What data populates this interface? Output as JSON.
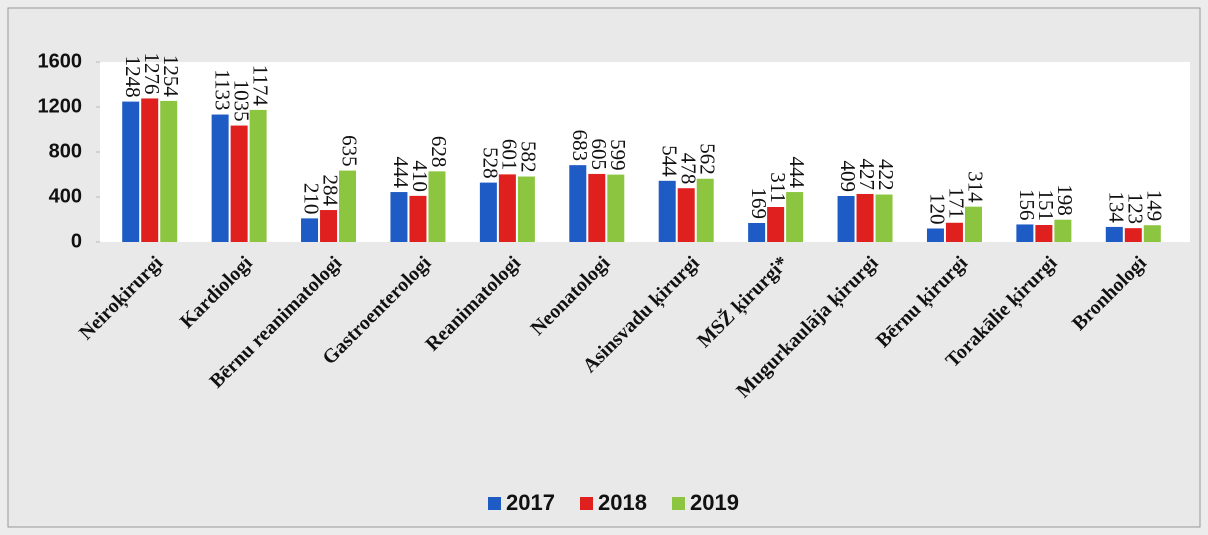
{
  "chart_data": {
    "type": "bar",
    "categories": [
      "Neiroķirurgi",
      "Kardiologi",
      "Bērnu reanimatologi",
      "Gastroenterologi",
      "Reanimatologi",
      "Neonatologi",
      "Asinsvadu ķirurgi",
      "MSŽ ķirurgi*",
      "Mugurkaulāja ķirurgi",
      "Bērnu ķirurgi",
      "Torakālie ķirurgi",
      "Bronhologi"
    ],
    "series": [
      {
        "name": "2017",
        "color": "#1f5bc4",
        "values": [
          1248,
          1133,
          210,
          444,
          528,
          683,
          544,
          169,
          409,
          120,
          156,
          134
        ]
      },
      {
        "name": "2018",
        "color": "#e01f1f",
        "values": [
          1276,
          1035,
          284,
          410,
          601,
          605,
          478,
          311,
          427,
          171,
          151,
          123
        ]
      },
      {
        "name": "2019",
        "color": "#8cc540",
        "values": [
          1254,
          1174,
          635,
          628,
          582,
          599,
          562,
          444,
          422,
          314,
          198,
          149
        ]
      }
    ],
    "ylim": [
      0,
      1600
    ],
    "yticks": [
      0,
      400,
      800,
      1200,
      1600
    ],
    "legend": "bottom"
  }
}
